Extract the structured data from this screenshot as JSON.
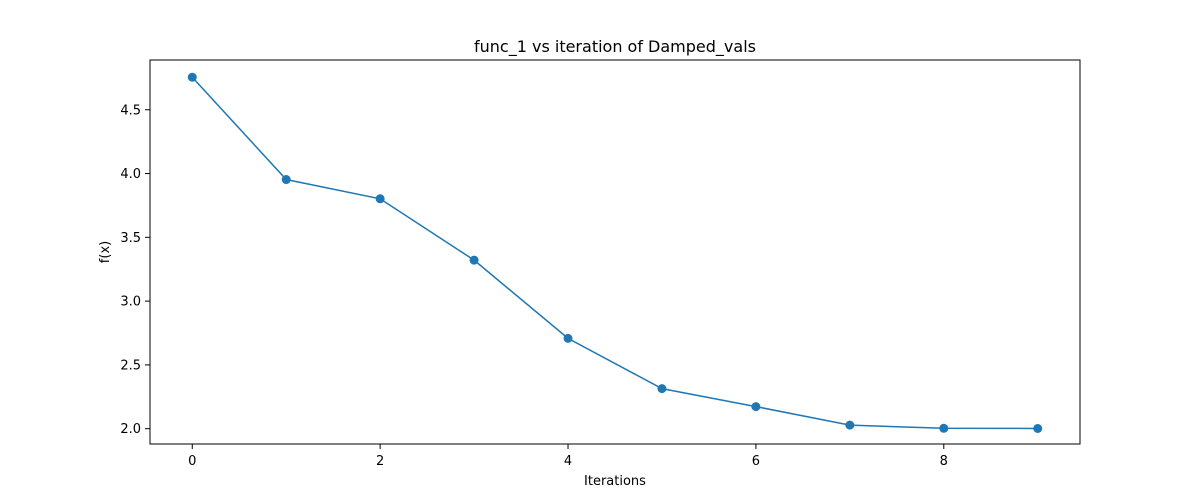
{
  "chart_data": {
    "type": "line",
    "title": "func_1 vs iteration of Damped_vals",
    "xlabel": "Iterations",
    "ylabel": "f(x)",
    "x": [
      0,
      1,
      2,
      3,
      4,
      5,
      6,
      7,
      8,
      9
    ],
    "series": [
      {
        "values": [
          4.755,
          3.953,
          3.802,
          3.321,
          2.708,
          2.314,
          2.173,
          2.028,
          2.003,
          2.002
        ],
        "color": "#1f77b4",
        "marker": "circle"
      }
    ],
    "xlim": [
      -0.45,
      9.45
    ],
    "ylim": [
      1.88,
      4.89
    ],
    "xticks": [
      0,
      2,
      4,
      6,
      8
    ],
    "xtick_labels": [
      "0",
      "2",
      "4",
      "6",
      "8"
    ],
    "yticks": [
      2.0,
      2.5,
      3.0,
      3.5,
      4.0,
      4.5
    ],
    "ytick_labels": [
      "2.0",
      "2.5",
      "3.0",
      "3.5",
      "4.0",
      "4.5"
    ],
    "grid": false,
    "legend": "none"
  }
}
